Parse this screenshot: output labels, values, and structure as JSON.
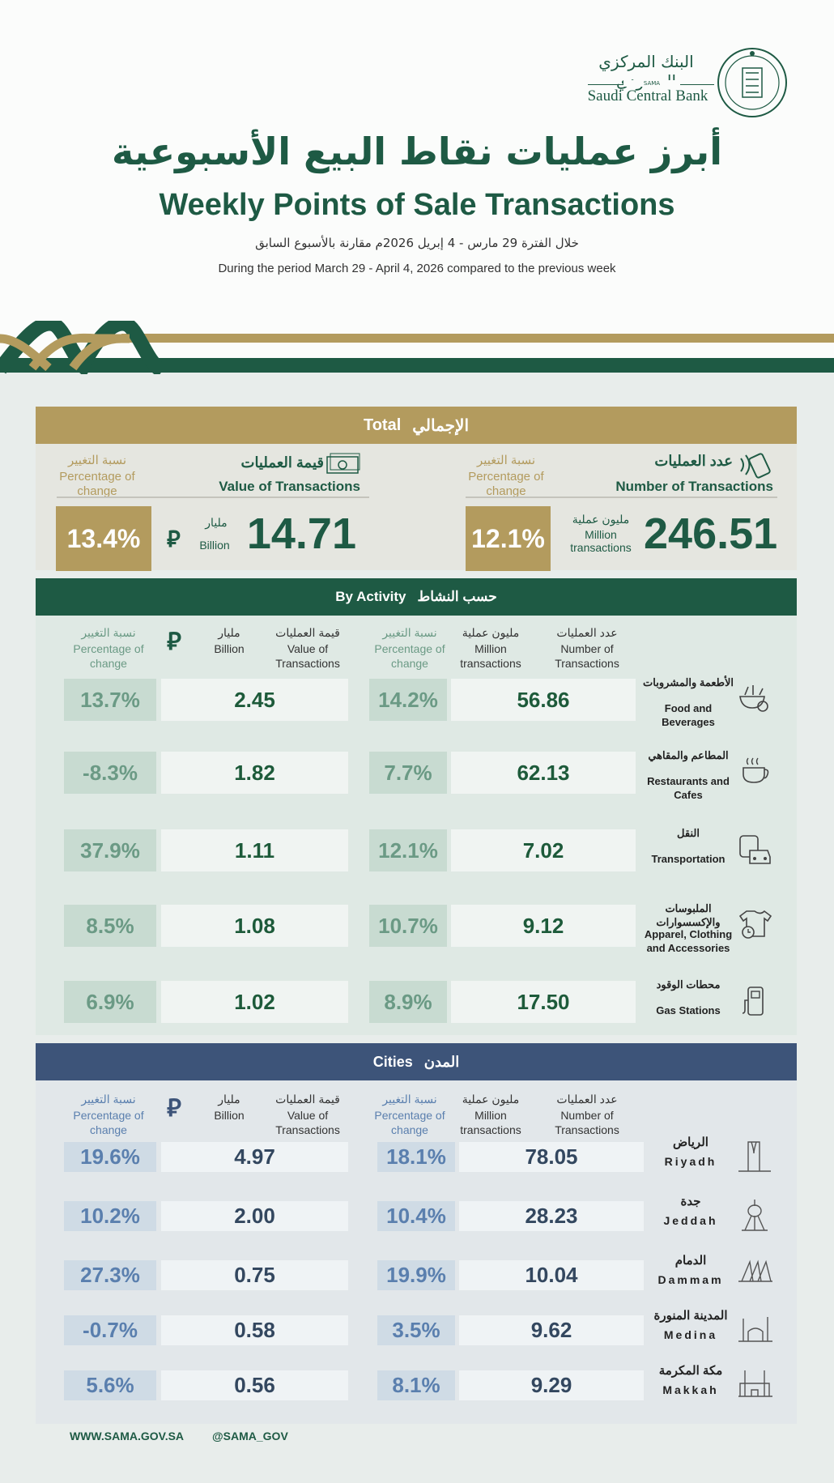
{
  "header": {
    "logo": {
      "arabic": "البنك المركزي السعودي",
      "abbr": "SAMA",
      "english": "Saudi Central Bank"
    },
    "title_ar": "أبرز عمليات نقاط البيع الأسبوعية",
    "title_en": "Weekly Points of Sale Transactions",
    "subtitle_ar": "خلال الفترة 29 مارس - 4 إبريل 2026م مقارنة بالأسبوع السابق",
    "subtitle_en": "During the period March 29 - April 4, 2026 compared to the previous week"
  },
  "colors": {
    "gold": "#b39b5e",
    "green": "#1e5a44",
    "navy": "#3d5479"
  },
  "total": {
    "title_ar": "الإجمالي",
    "title_en": "Total",
    "count": {
      "label_ar": "عدد العمليات",
      "label_en": "Number of Transactions",
      "pct_label_ar": "نسبة التغيير",
      "pct_label_en": "Percentage of change",
      "value": "246.51",
      "unit_ar": "مليون عملية",
      "unit_en": "Million transactions",
      "change": "12.1%",
      "icon": "contactless-card-icon"
    },
    "value": {
      "label_ar": "قيمة العمليات",
      "label_en": "Value of Transactions",
      "pct_label_ar": "نسبة التغيير",
      "pct_label_en": "Percentage of change",
      "value": "14.71",
      "unit_ar": "مليار",
      "unit_en": "Billion",
      "change": "13.4%",
      "icon": "banknote-icon"
    }
  },
  "columns": {
    "count_ar": "عدد العمليات",
    "count_en": "Number of Transactions",
    "million_ar": "مليون عملية",
    "million_en": "Million transactions",
    "pct_ar": "نسبة التغيير",
    "pct_en": "Percentage of change",
    "value_ar": "قيمة العمليات",
    "value_en": "Value of Transactions",
    "billion_ar": "مليار",
    "billion_en": "Billion"
  },
  "activity": {
    "title_ar": "حسب النشاط",
    "title_en": "By Activity",
    "rows": [
      {
        "name_ar": "الأطعمة والمشروبات",
        "name_en": "Food and Beverages",
        "count": "56.86",
        "count_change": "14.2%",
        "value": "2.45",
        "value_change": "13.7%",
        "icon": "food-bowl-icon"
      },
      {
        "name_ar": "المطاعم والمقاهي",
        "name_en": "Restaurants and Cafes",
        "count": "62.13",
        "count_change": "7.7%",
        "value": "1.82",
        "value_change": "-8.3%",
        "icon": "coffee-cup-icon"
      },
      {
        "name_ar": "النقل",
        "name_en": "Transportation",
        "count": "7.02",
        "count_change": "12.1%",
        "value": "1.11",
        "value_change": "37.9%",
        "icon": "bus-car-icon"
      },
      {
        "name_ar": "الملبوسات والإكسسوارات",
        "name_en": "Apparel, Clothing and Accessories",
        "count": "9.12",
        "count_change": "10.7%",
        "value": "1.08",
        "value_change": "8.5%",
        "icon": "shirt-watch-icon"
      },
      {
        "name_ar": "محطات الوقود",
        "name_en": "Gas Stations",
        "count": "17.50",
        "count_change": "8.9%",
        "value": "1.02",
        "value_change": "6.9%",
        "icon": "fuel-pump-icon"
      }
    ]
  },
  "cities": {
    "title_ar": "المدن",
    "title_en": "Cities",
    "rows": [
      {
        "name_ar": "الرياض",
        "name_en": "Riyadh",
        "count": "78.05",
        "count_change": "18.1%",
        "value": "4.97",
        "value_change": "19.6%",
        "icon": "kingdom-tower-icon"
      },
      {
        "name_ar": "جدة",
        "name_en": "Jeddah",
        "count": "28.23",
        "count_change": "10.4%",
        "value": "2.00",
        "value_change": "10.2%",
        "icon": "water-tower-icon"
      },
      {
        "name_ar": "الدمام",
        "name_en": "Dammam",
        "count": "10.04",
        "count_change": "19.9%",
        "value": "0.75",
        "value_change": "27.3%",
        "icon": "dammam-landmark-icon"
      },
      {
        "name_ar": "المدينة المنورة",
        "name_en": "Medina",
        "count": "9.62",
        "count_change": "3.5%",
        "value": "0.58",
        "value_change": "-0.7%",
        "icon": "mosque-icon"
      },
      {
        "name_ar": "مكة المكرمة",
        "name_en": "Makkah",
        "count": "9.29",
        "count_change": "8.1%",
        "value": "0.56",
        "value_change": "5.6%",
        "icon": "kaaba-mosque-icon"
      }
    ]
  },
  "footer": {
    "website": "WWW.SAMA.GOV.SA",
    "handle": "@SAMA_GOV"
  }
}
